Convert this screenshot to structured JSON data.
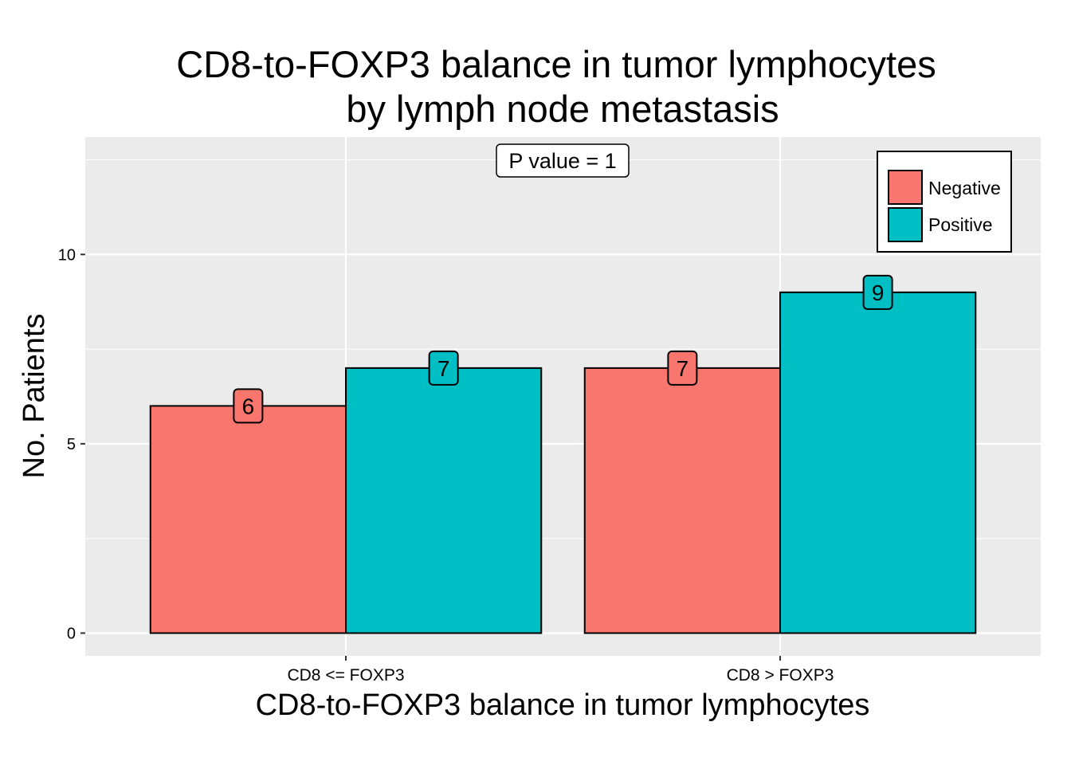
{
  "chart_data": {
    "type": "bar",
    "title_lines": [
      "CD8-to-FOXP3 balance in tumor lymphocytes",
      "by lymph node metastasis"
    ],
    "xlabel": "CD8-to-FOXP3 balance in tumor lymphocytes",
    "ylabel": "No. Patients",
    "categories": [
      "CD8 <= FOXP3",
      "CD8 > FOXP3"
    ],
    "series": [
      {
        "name": "Negative",
        "color": "#F8766D",
        "values": [
          6,
          7
        ]
      },
      {
        "name": "Positive",
        "color": "#00BFC4",
        "values": [
          7,
          9
        ]
      }
    ],
    "ylim": [
      -0.6,
      13.1
    ],
    "yticks": [
      0,
      5,
      10
    ],
    "yminor": [
      2.5,
      7.5,
      12.5
    ],
    "annotation": "P value = 1",
    "legend_position": "top-right",
    "grid": true,
    "panel_background": "#EBEBEB"
  }
}
